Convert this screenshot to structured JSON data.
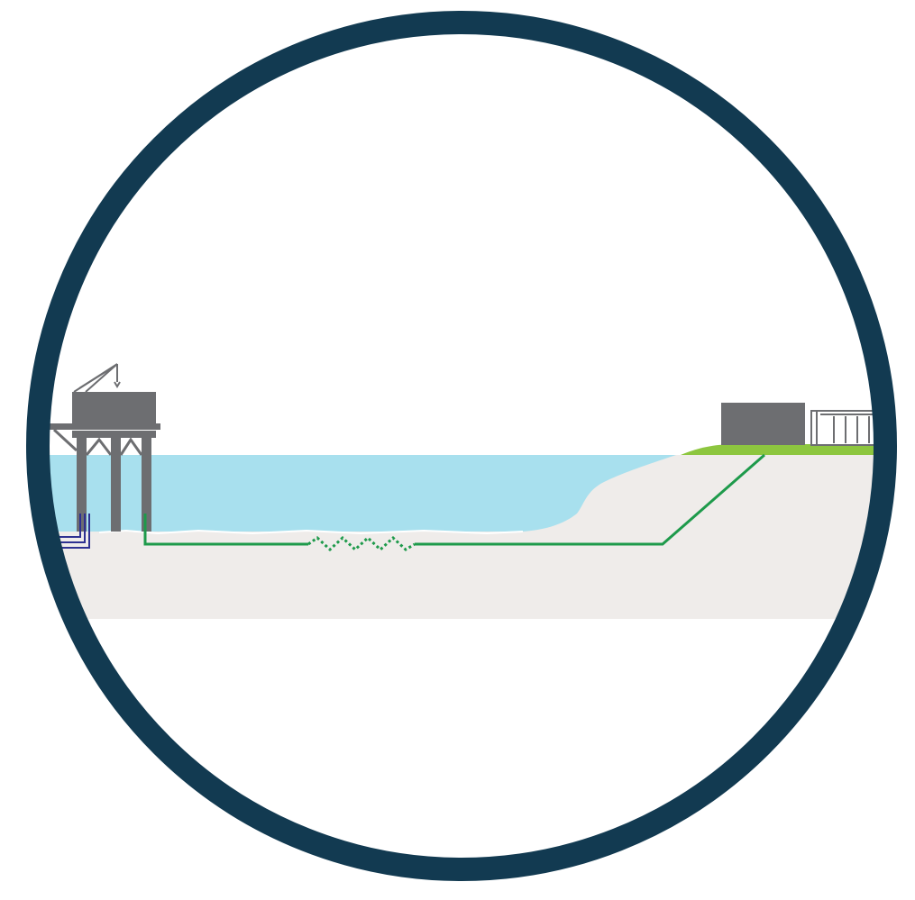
{
  "colors": {
    "frame": "#123a51",
    "sea": "#a8e0ee",
    "seabed": "#efecea",
    "land": "#8dc63f",
    "structure": "#6d6e71",
    "export_cable": "#1e9a4b",
    "infield_cables": "#2e3192",
    "background": "#ffffff"
  },
  "components": [
    {
      "id": "offshore-platform",
      "icon": "platform-crane-icon"
    },
    {
      "id": "export-cable",
      "icon": "subsea-cable-icon"
    },
    {
      "id": "onshore-building",
      "icon": "building-icon"
    },
    {
      "id": "substation",
      "icon": "substation-gantry-icon"
    }
  ]
}
